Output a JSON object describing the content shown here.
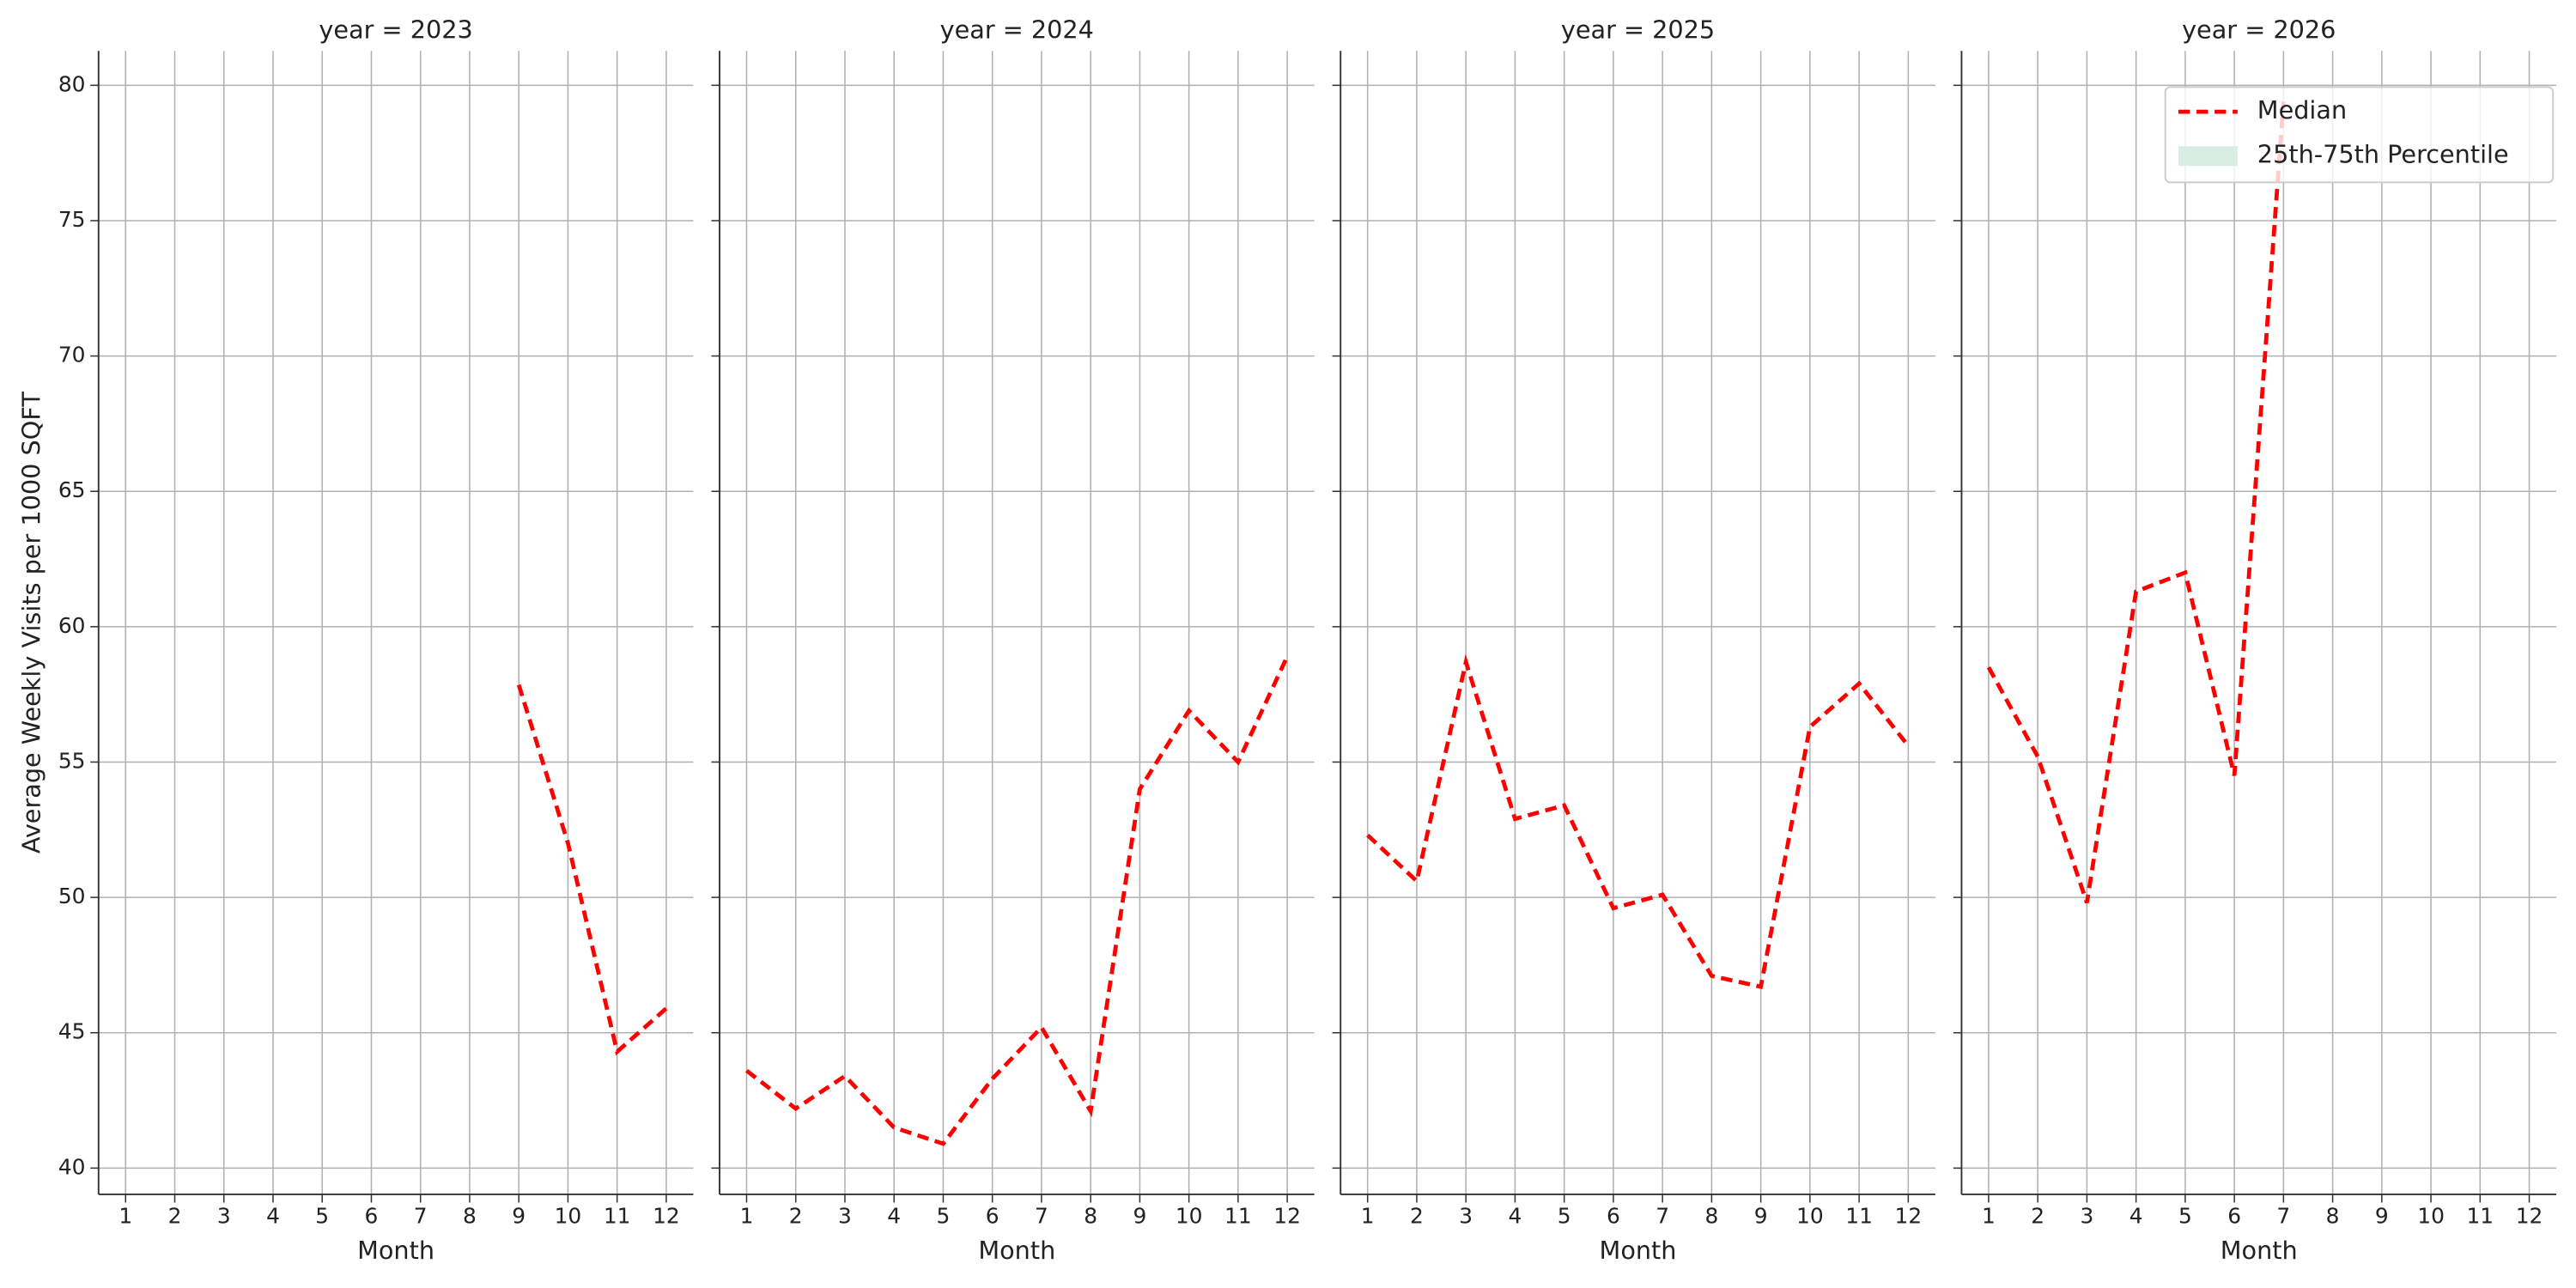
{
  "chart_data": [
    {
      "type": "line",
      "title": "year = 2023",
      "xlabel": "Month",
      "ylabel": "Average Weekly Visits per 1000 SQFT",
      "x": [
        1,
        2,
        3,
        4,
        5,
        6,
        7,
        8,
        9,
        10,
        11,
        12
      ],
      "xlim": [
        0.45,
        12.55
      ],
      "xticks": [
        1,
        2,
        3,
        4,
        5,
        6,
        7,
        8,
        9,
        10,
        11,
        12
      ],
      "ylim": [
        39.03,
        81.27
      ],
      "yticks": [
        40,
        45,
        50,
        55,
        60,
        65,
        70,
        75,
        80
      ],
      "grid": true,
      "series": [
        {
          "name": "Median",
          "color": "#ff0000",
          "values": [
            null,
            null,
            null,
            null,
            null,
            null,
            null,
            null,
            57.85,
            52.0,
            44.3,
            45.9
          ]
        }
      ]
    },
    {
      "type": "line",
      "title": "year = 2024",
      "xlabel": "Month",
      "x": [
        1,
        2,
        3,
        4,
        5,
        6,
        7,
        8,
        9,
        10,
        11,
        12
      ],
      "xlim": [
        0.45,
        12.55
      ],
      "xticks": [
        1,
        2,
        3,
        4,
        5,
        6,
        7,
        8,
        9,
        10,
        11,
        12
      ],
      "ylim": [
        39.03,
        81.27
      ],
      "yticks": [
        40,
        45,
        50,
        55,
        60,
        65,
        70,
        75,
        80
      ],
      "grid": true,
      "series": [
        {
          "name": "Median",
          "color": "#ff0000",
          "values": [
            43.6,
            42.2,
            43.4,
            41.5,
            40.9,
            43.3,
            45.2,
            42.1,
            54.0,
            56.9,
            55.0,
            58.9
          ]
        }
      ]
    },
    {
      "type": "line",
      "title": "year = 2025",
      "xlabel": "Month",
      "x": [
        1,
        2,
        3,
        4,
        5,
        6,
        7,
        8,
        9,
        10,
        11,
        12
      ],
      "xlim": [
        0.45,
        12.55
      ],
      "xticks": [
        1,
        2,
        3,
        4,
        5,
        6,
        7,
        8,
        9,
        10,
        11,
        12
      ],
      "ylim": [
        39.03,
        81.27
      ],
      "yticks": [
        40,
        45,
        50,
        55,
        60,
        65,
        70,
        75,
        80
      ],
      "grid": true,
      "series": [
        {
          "name": "Median",
          "color": "#ff0000",
          "values": [
            52.3,
            50.6,
            58.7,
            52.9,
            53.4,
            49.6,
            50.1,
            47.1,
            46.7,
            56.3,
            57.9,
            55.6
          ]
        }
      ]
    },
    {
      "type": "line",
      "title": "year = 2026",
      "xlabel": "Month",
      "x": [
        1,
        2,
        3,
        4,
        5,
        6,
        7,
        8,
        9,
        10,
        11,
        12
      ],
      "xlim": [
        0.45,
        12.55
      ],
      "xticks": [
        1,
        2,
        3,
        4,
        5,
        6,
        7,
        8,
        9,
        10,
        11,
        12
      ],
      "ylim": [
        39.03,
        81.27
      ],
      "yticks": [
        40,
        45,
        50,
        55,
        60,
        65,
        70,
        75,
        80
      ],
      "grid": true,
      "series": [
        {
          "name": "Median",
          "color": "#ff0000",
          "values": [
            58.5,
            55.2,
            49.8,
            61.3,
            62.0,
            54.5,
            79.4,
            null,
            null,
            null,
            null,
            null
          ]
        }
      ],
      "legend": {
        "loc": "upper right",
        "band": {
          "name": "25th-75th Percentile",
          "color": "#d8eee4"
        }
      }
    }
  ]
}
